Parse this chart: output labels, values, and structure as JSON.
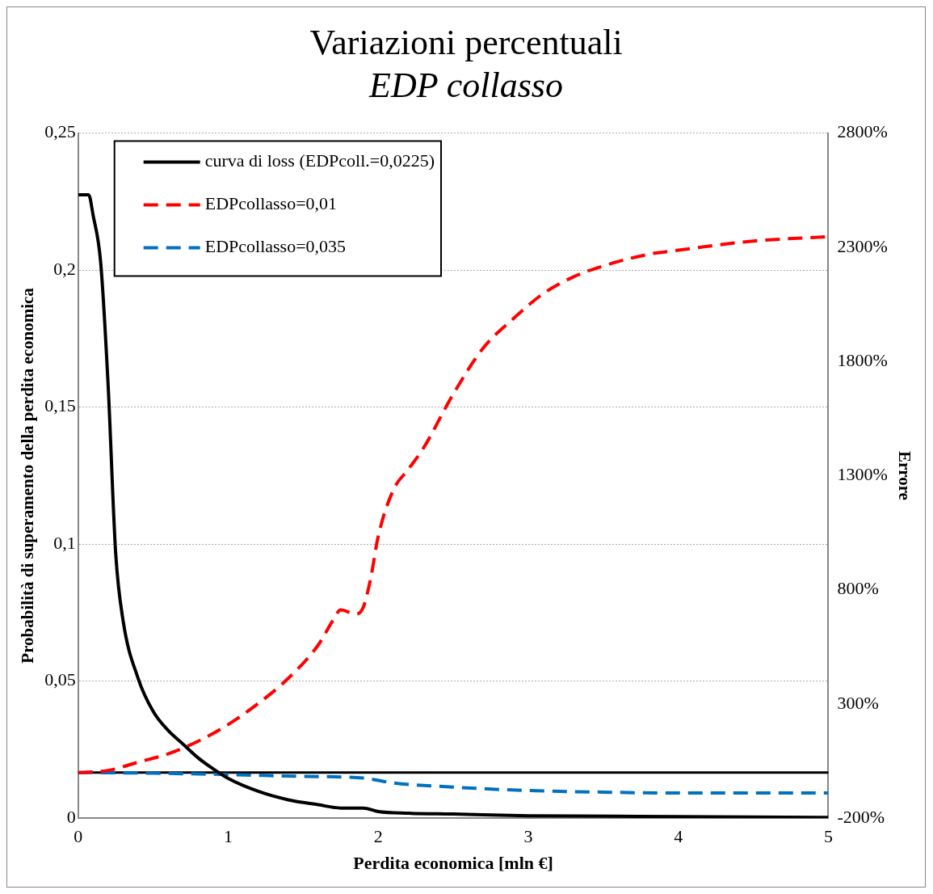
{
  "chart_data": {
    "type": "line",
    "title": "Variazioni percentuali",
    "subtitle": "EDP collasso",
    "xlabel": "Perdita economica [mln €]",
    "ylabel": "Probabilità di superamento della perdita economica",
    "y2label": "Errore",
    "xlim": [
      0,
      5
    ],
    "xticks": [
      0,
      1,
      2,
      3,
      4,
      5
    ],
    "ylim": [
      0,
      0.25
    ],
    "yticks": [
      0,
      {
        "value": 0.05,
        "label": "0,05"
      },
      {
        "value": 0.1,
        "label": "0,1"
      },
      {
        "value": 0.15,
        "label": "0,15"
      },
      {
        "value": 0.2,
        "label": "0,2"
      },
      {
        "value": 0.25,
        "label": "0,25"
      }
    ],
    "y2lim": [
      -200,
      2800
    ],
    "y2ticks": [
      {
        "value": -200,
        "label": "-200%"
      },
      {
        "value": 300,
        "label": "300%"
      },
      {
        "value": 800,
        "label": "800%"
      },
      {
        "value": 1300,
        "label": "1300%"
      },
      {
        "value": 1800,
        "label": "1800%"
      },
      {
        "value": 2300,
        "label": "2300%"
      },
      {
        "value": 2800,
        "label": "2800%"
      }
    ],
    "grid": "y",
    "legend": "top left",
    "marker": "none",
    "ref_lines": [
      {
        "axis": "y2",
        "value": 0,
        "color": "#000000",
        "line_style": "solid"
      }
    ],
    "series": [
      {
        "name": "curva di loss (EDPcoll.=0,0225)",
        "color": "#000000",
        "line_style": "solid",
        "x": [
          0,
          0.07,
          0.1,
          0.15,
          0.2,
          0.25,
          0.3,
          0.4,
          0.5,
          0.6,
          0.7,
          0.8,
          0.9,
          1,
          1.2,
          1.4,
          1.6,
          1.75,
          1.9,
          2,
          2.2,
          2.5,
          3,
          4,
          5
        ],
        "values": [
          0.2275,
          0.2275,
          0.22,
          0.203,
          0.158,
          0.097,
          0.072,
          0.051,
          0.039,
          0.032,
          0.027,
          0.022,
          0.018,
          0.0145,
          0.0098,
          0.0067,
          0.0049,
          0.0037,
          0.0037,
          0.0024,
          0.0018,
          0.0015,
          0.0009,
          0.0006,
          0.0003
        ]
      },
      {
        "name": "EDPcollasso=0,01",
        "color": "#ff0000",
        "line_style": "dashed",
        "axis": "y2",
        "x": [
          0,
          0.2,
          0.4,
          0.6,
          0.8,
          1,
          1.2,
          1.4,
          1.6,
          1.7,
          1.75,
          1.85,
          1.9,
          1.95,
          2,
          2.1,
          2.2,
          2.3,
          2.5,
          2.7,
          2.9,
          3.1,
          3.3,
          3.5,
          3.8,
          4,
          4.5,
          5
        ],
        "values": [
          0,
          9,
          45,
          82,
          137,
          210,
          302,
          412,
          558,
          668,
          712,
          694,
          723,
          851,
          1034,
          1236,
          1327,
          1419,
          1657,
          1859,
          1987,
          2097,
          2170,
          2218,
          2269,
          2287,
          2327,
          2346
        ]
      },
      {
        "name": "EDPcollasso=0,035",
        "color": "#0070c0",
        "line_style": "dashed",
        "axis": "y2",
        "x": [
          0,
          0.5,
          1,
          1.5,
          1.9,
          2.1,
          2.5,
          3,
          3.5,
          4,
          5
        ],
        "values": [
          0,
          -3,
          -9,
          -17,
          -24,
          -46,
          -64,
          -79,
          -86,
          -90,
          -90
        ]
      }
    ]
  }
}
